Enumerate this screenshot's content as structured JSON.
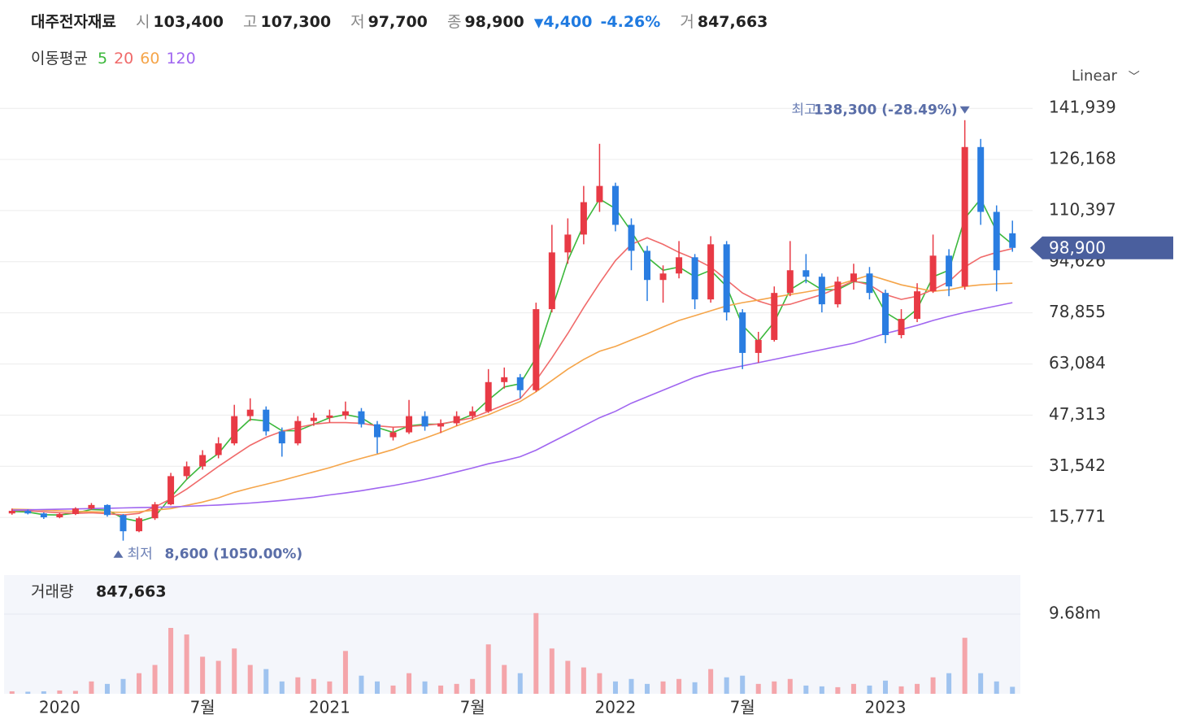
{
  "header": {
    "title": "대주전자재료",
    "items": [
      {
        "label": "시",
        "value": "103,400"
      },
      {
        "label": "고",
        "value": "107,300"
      },
      {
        "label": "저",
        "value": "97,700"
      },
      {
        "label": "종",
        "value": "98,900"
      }
    ],
    "change": "4,400",
    "change_pct": "-4.26%",
    "volume_label": "거",
    "volume": "847,663"
  },
  "chart_data": {
    "type": "candlestick",
    "categories": [
      null,
      null,
      null,
      "2020",
      null,
      null,
      null,
      null,
      null,
      null,
      null,
      null,
      "7월",
      null,
      null,
      null,
      null,
      null,
      null,
      null,
      "2021",
      null,
      null,
      null,
      null,
      null,
      null,
      null,
      null,
      "7월",
      null,
      null,
      null,
      null,
      null,
      null,
      null,
      null,
      "2022",
      null,
      null,
      null,
      null,
      null,
      null,
      null,
      "7월",
      null,
      null,
      null,
      null,
      null,
      null,
      null,
      null,
      "2023",
      null,
      null,
      null,
      null,
      null,
      null,
      null,
      null
    ],
    "candles": [
      [
        17000,
        18500,
        16600,
        17800
      ],
      [
        17800,
        18200,
        16700,
        17000
      ],
      [
        17000,
        17300,
        15300,
        15800
      ],
      [
        15800,
        17200,
        15500,
        16800
      ],
      [
        16800,
        18900,
        16500,
        18500
      ],
      [
        18500,
        20200,
        18100,
        19600
      ],
      [
        19600,
        19800,
        16000,
        16500
      ],
      [
        16500,
        16800,
        8600,
        11500
      ],
      [
        11500,
        16000,
        11200,
        15500
      ],
      [
        15500,
        20500,
        15000,
        19800
      ],
      [
        19800,
        29500,
        19500,
        28500
      ],
      [
        28500,
        33000,
        27500,
        31500
      ],
      [
        31500,
        36500,
        30500,
        35000
      ],
      [
        35000,
        40500,
        34000,
        38600
      ],
      [
        38600,
        50500,
        38000,
        47000
      ],
      [
        47000,
        52500,
        45500,
        49000
      ],
      [
        49000,
        50000,
        41000,
        42300
      ],
      [
        42300,
        43500,
        34500,
        38600
      ],
      [
        38600,
        47000,
        38000,
        45500
      ],
      [
        45500,
        48000,
        44000,
        46500
      ],
      [
        46500,
        49000,
        45000,
        47200
      ],
      [
        47200,
        51500,
        46000,
        48500
      ],
      [
        48500,
        49500,
        43500,
        44500
      ],
      [
        44500,
        45500,
        35500,
        40500
      ],
      [
        40500,
        43500,
        39500,
        42000
      ],
      [
        42000,
        52000,
        41500,
        47000
      ],
      [
        47000,
        48500,
        42500,
        43800
      ],
      [
        43800,
        46000,
        41800,
        44800
      ],
      [
        44800,
        48500,
        44000,
        47000
      ],
      [
        47000,
        50000,
        46000,
        48500
      ],
      [
        48500,
        61500,
        48000,
        57500
      ],
      [
        57500,
        62000,
        55500,
        59000
      ],
      [
        59000,
        60000,
        52500,
        55000
      ],
      [
        55000,
        82000,
        54500,
        80000
      ],
      [
        80000,
        106000,
        79000,
        97500
      ],
      [
        97500,
        108000,
        94000,
        103000
      ],
      [
        103000,
        118000,
        100000,
        113000
      ],
      [
        113000,
        131000,
        110000,
        118000
      ],
      [
        118000,
        119000,
        104000,
        106000
      ],
      [
        106000,
        108000,
        92000,
        98000
      ],
      [
        98000,
        99500,
        82500,
        89000
      ],
      [
        89000,
        93500,
        82000,
        91000
      ],
      [
        91000,
        101000,
        89500,
        96000
      ],
      [
        96000,
        97000,
        80000,
        83000
      ],
      [
        83000,
        102500,
        82000,
        100000
      ],
      [
        100000,
        101000,
        76500,
        79000
      ],
      [
        79000,
        80000,
        61500,
        66500
      ],
      [
        66500,
        73000,
        63500,
        70500
      ],
      [
        70500,
        87000,
        70000,
        85000
      ],
      [
        85000,
        101000,
        84000,
        92000
      ],
      [
        92000,
        97000,
        88000,
        90000
      ],
      [
        90000,
        91000,
        79000,
        81500
      ],
      [
        81500,
        90000,
        80500,
        88500
      ],
      [
        88500,
        94000,
        86000,
        91000
      ],
      [
        91000,
        93000,
        83000,
        85000
      ],
      [
        85000,
        86000,
        69500,
        72000
      ],
      [
        72000,
        80000,
        71000,
        77000
      ],
      [
        77000,
        88000,
        76000,
        85500
      ],
      [
        85500,
        103000,
        85000,
        96500
      ],
      [
        96500,
        98500,
        84000,
        87000
      ],
      [
        87000,
        138300,
        86000,
        130000
      ],
      [
        130000,
        132500,
        106000,
        110000
      ],
      [
        110000,
        112000,
        85500,
        92000
      ],
      [
        103400,
        107300,
        97700,
        98900
      ]
    ],
    "up_color": "#e83a45",
    "down_color": "#2a7de1",
    "ma_title": "이동평균",
    "series": [
      {
        "name": "5",
        "color": "#3cb83c",
        "values": [
          17600,
          17400,
          16600,
          16500,
          17100,
          18200,
          18000,
          15500,
          14500,
          16000,
          22000,
          27500,
          32000,
          35500,
          41500,
          46000,
          45500,
          42500,
          42500,
          44500,
          46500,
          47500,
          46500,
          43500,
          42000,
          44000,
          44500,
          44500,
          45500,
          47500,
          52000,
          56000,
          57000,
          65000,
          80000,
          95000,
          106000,
          114000,
          111000,
          104000,
          96000,
          92000,
          93000,
          90000,
          92000,
          87000,
          75000,
          70000,
          76000,
          86000,
          89000,
          86000,
          86000,
          88500,
          88000,
          79000,
          76000,
          80000,
          90000,
          92000,
          108000,
          114000,
          104000,
          100000
        ]
      },
      {
        "name": "20",
        "color": "#f06a6a",
        "values": [
          18000,
          17800,
          17500,
          17200,
          17000,
          17200,
          16900,
          16500,
          17000,
          19000,
          21500,
          24500,
          28000,
          31500,
          34800,
          38000,
          40500,
          42300,
          43500,
          44500,
          45000,
          45000,
          44800,
          44000,
          43600,
          43800,
          44200,
          44600,
          45500,
          46500,
          48500,
          50500,
          52400,
          58000,
          65000,
          72500,
          80500,
          88000,
          95000,
          100000,
          102000,
          100000,
          97500,
          95500,
          93000,
          89000,
          85000,
          82500,
          81000,
          81500,
          83000,
          84500,
          86500,
          88700,
          87500,
          84500,
          83000,
          84000,
          86000,
          88500,
          93000,
          96000,
          97500,
          98700
        ]
      },
      {
        "name": "60",
        "color": "#f5a54a",
        "values": [
          18300,
          18200,
          18000,
          17800,
          17600,
          17500,
          17400,
          17300,
          17500,
          18000,
          18500,
          19500,
          20500,
          21800,
          23500,
          24800,
          26000,
          27200,
          28500,
          29800,
          31100,
          32600,
          34000,
          35300,
          36700,
          38600,
          40200,
          42000,
          44000,
          45800,
          47400,
          49500,
          51500,
          54500,
          58000,
          61500,
          64500,
          67000,
          68500,
          70500,
          72400,
          74500,
          76500,
          78000,
          79500,
          81000,
          82000,
          82800,
          83700,
          84500,
          85300,
          86200,
          87500,
          89000,
          90500,
          89000,
          87500,
          86500,
          85500,
          86000,
          87000,
          87500,
          87800,
          88000
        ]
      },
      {
        "name": "120",
        "color": "#a066f0",
        "values": [
          18000,
          18100,
          18200,
          18300,
          18400,
          18500,
          18600,
          18700,
          18800,
          18900,
          19000,
          19200,
          19400,
          19600,
          19900,
          20200,
          20600,
          21000,
          21500,
          22000,
          22700,
          23300,
          24000,
          24800,
          25600,
          26500,
          27500,
          28600,
          29800,
          31000,
          32300,
          33300,
          34500,
          36500,
          39000,
          41500,
          44000,
          46500,
          48500,
          51000,
          53000,
          55000,
          57000,
          59000,
          60500,
          61500,
          62500,
          63500,
          64500,
          65500,
          66500,
          67500,
          68500,
          69500,
          71000,
          72500,
          73700,
          75000,
          76500,
          77800,
          79000,
          80000,
          81000,
          82000
        ]
      }
    ],
    "ylim": [
      0,
      146000
    ],
    "yticks": [
      {
        "value": 15771,
        "label": "15,771"
      },
      {
        "value": 31542,
        "label": "31,542"
      },
      {
        "value": 47313,
        "label": "47,313"
      },
      {
        "value": 63084,
        "label": "63,084"
      },
      {
        "value": 78855,
        "label": "78,855"
      },
      {
        "value": 94626,
        "label": "94,626"
      },
      {
        "value": 110397,
        "label": "110,397"
      },
      {
        "value": 126168,
        "label": "126,168"
      },
      {
        "value": 141939,
        "label": "141,939"
      }
    ],
    "grid": true,
    "scale_label": "Linear",
    "high_annotation": {
      "label": "최고",
      "text": "138,300 (-28.49%)",
      "value": 138300,
      "index": 60
    },
    "low_annotation": {
      "label": "최저",
      "text": "8,600 (1050.00%)",
      "value": 8600,
      "index": 7
    },
    "last_price": {
      "value": 98900,
      "label": "98,900"
    },
    "volume": {
      "title": "거래량",
      "last": "847,663",
      "values": [
        300000,
        250000,
        300000,
        400000,
        350000,
        1500000,
        1200000,
        1800000,
        2500000,
        3500000,
        8000000,
        7200000,
        4500000,
        4000000,
        5500000,
        3500000,
        3000000,
        1500000,
        2000000,
        1800000,
        1500000,
        5200000,
        2200000,
        1500000,
        1000000,
        2500000,
        1500000,
        1000000,
        1200000,
        1800000,
        6000000,
        3500000,
        2500000,
        9800000,
        5500000,
        4000000,
        3200000,
        2500000,
        1500000,
        1800000,
        1200000,
        1500000,
        1800000,
        1400000,
        3000000,
        2000000,
        2200000,
        1200000,
        1500000,
        1800000,
        1000000,
        900000,
        800000,
        1200000,
        1000000,
        1600000,
        900000,
        1200000,
        2000000,
        2500000,
        6800000,
        2500000,
        1500000,
        847663
      ],
      "up_color": "#f4a5aa",
      "down_color": "#9fc3ef",
      "ylim": [
        0,
        14420000
      ],
      "yticks": [
        {
          "value": 9680000,
          "label": "9.68m"
        }
      ]
    }
  }
}
